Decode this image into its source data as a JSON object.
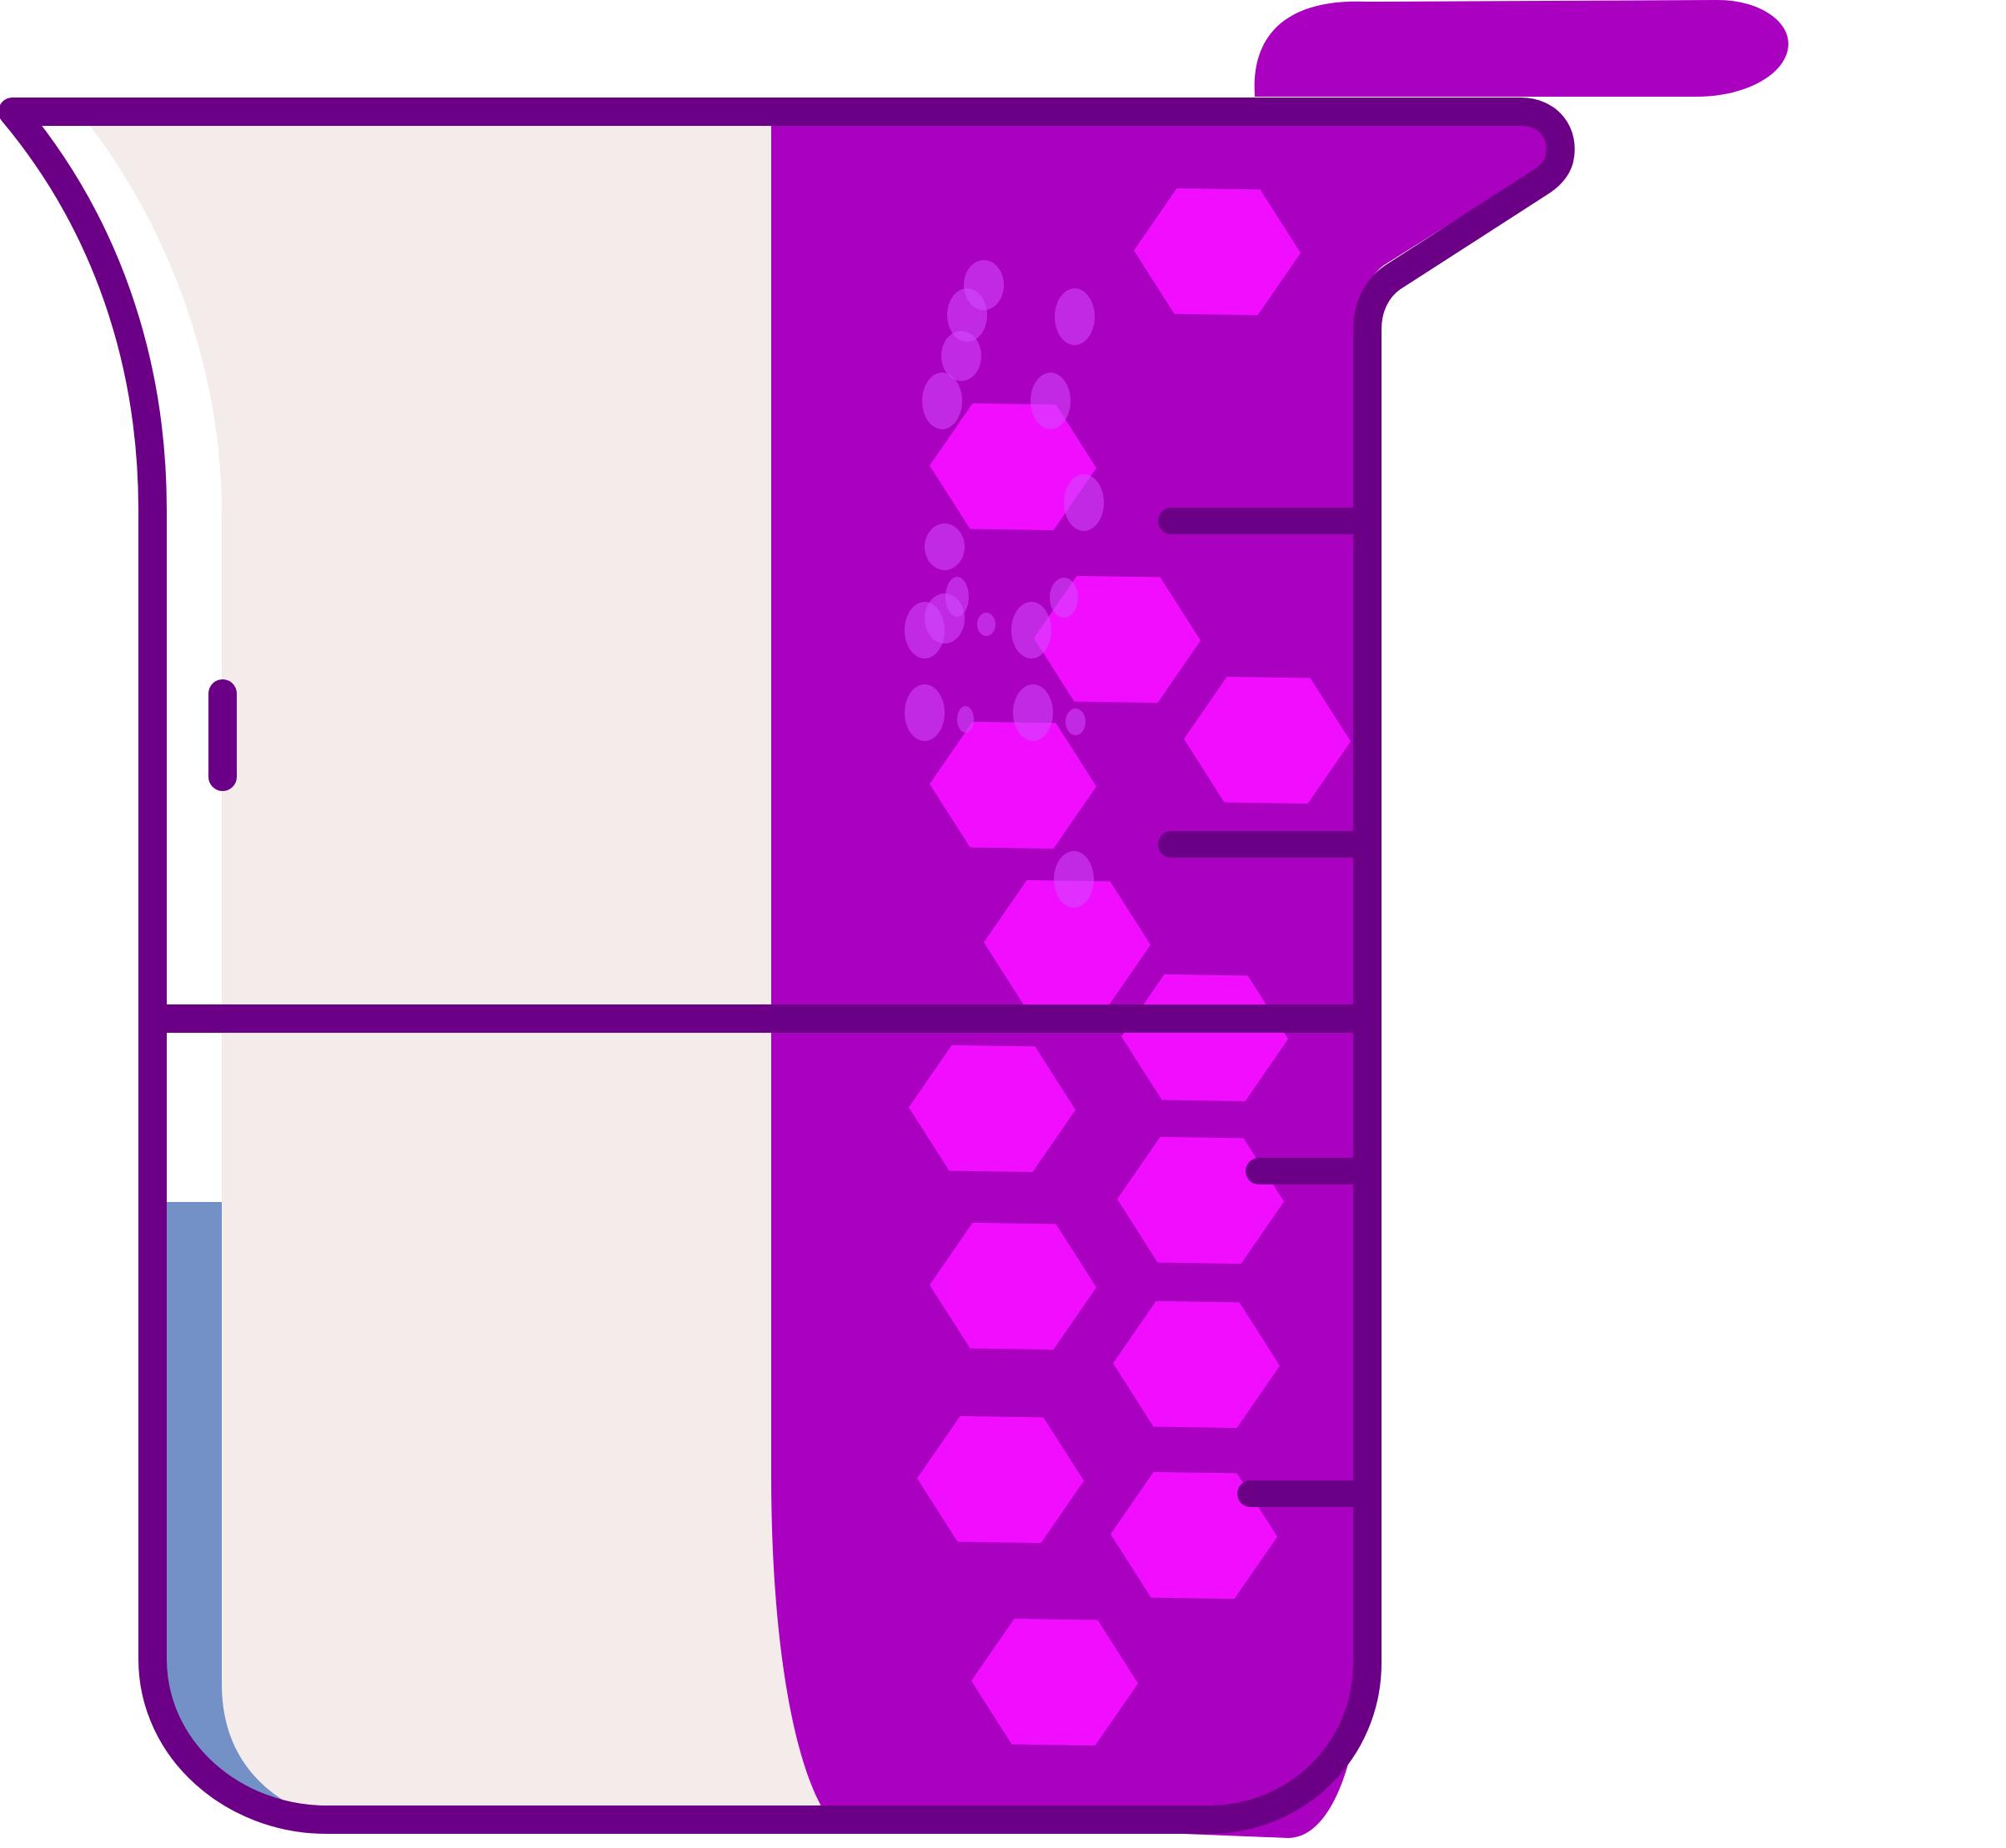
{
  "illustration": {
    "subject": "beaker-with-liquid",
    "colors": {
      "outline": "#6b0087",
      "glass_fill": "#f3ecea",
      "glass_highlight": "#ffffff",
      "liquid": "#aa00bf",
      "liquid_light": "#f10dff",
      "bubble": "#d44dff",
      "blue_light": "#7390c7",
      "blue_dark": "#34508f",
      "background": "#ffffff"
    },
    "icons": [
      "beaker-icon",
      "hexagon-particle-icon",
      "bubble-icon"
    ],
    "graduation_marks": 4,
    "hexagon_particles": 16,
    "bubbles": 22
  }
}
